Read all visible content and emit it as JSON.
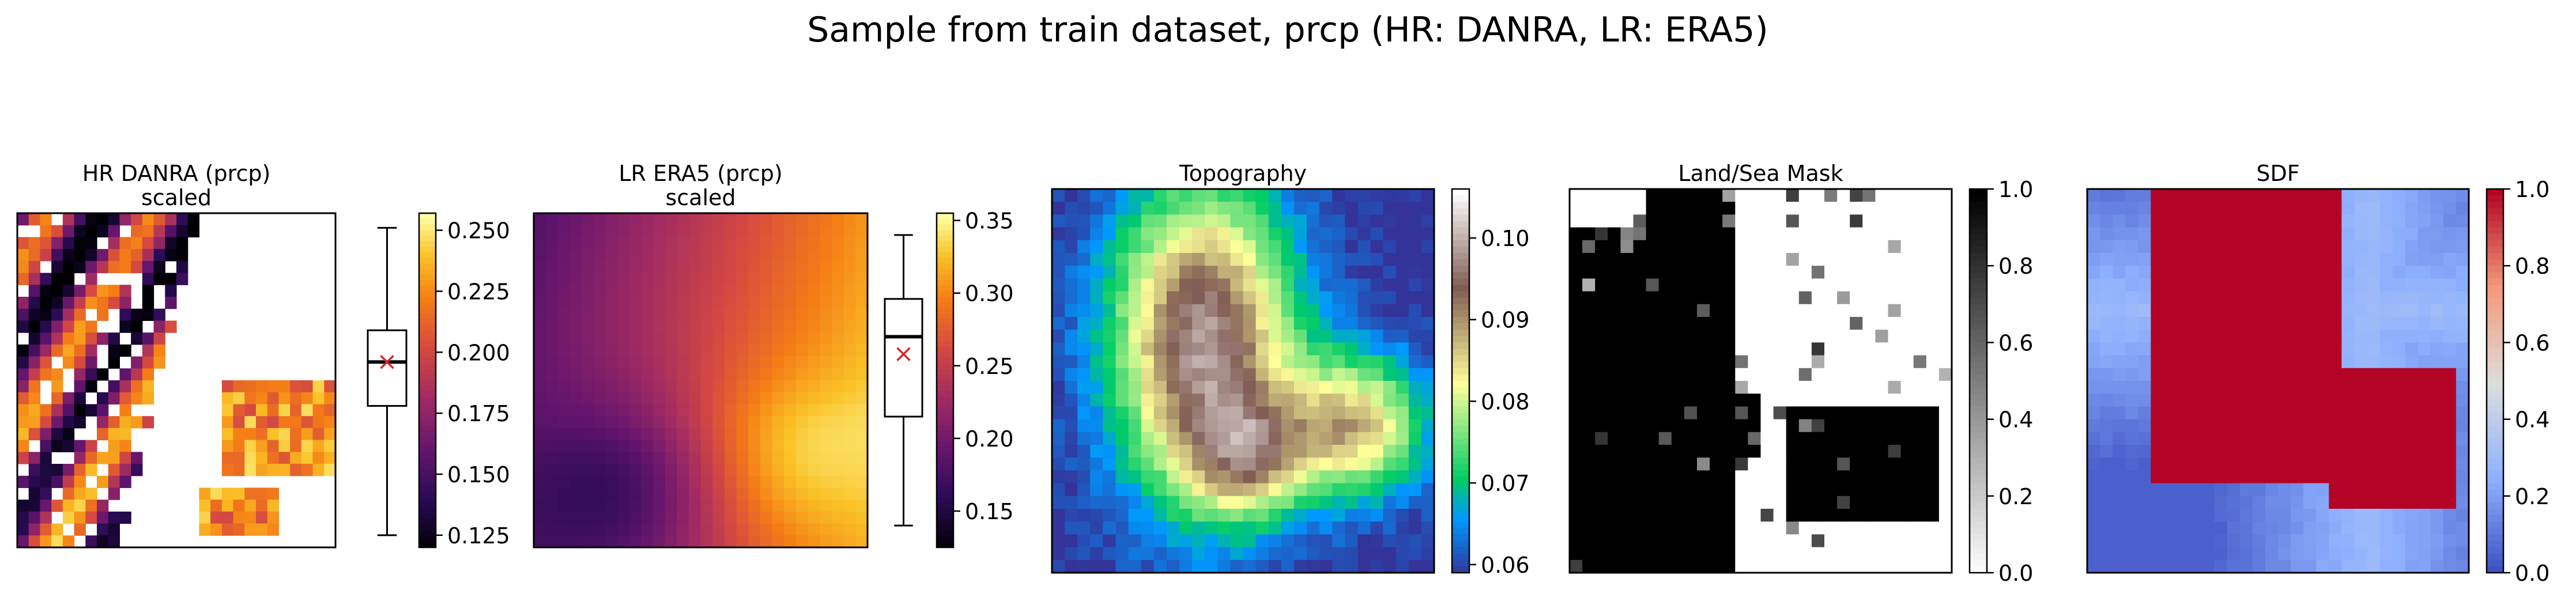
{
  "figure": {
    "suptitle": "Sample from train dataset, prcp (HR: DANRA, LR: ERA5)"
  },
  "chart_data": [
    {
      "type": "heatmap",
      "title": "HR DANRA (prcp)\nscaled",
      "colormap": "inferno",
      "masked": true,
      "colorbar": {
        "range": [
          0.12,
          0.257
        ],
        "ticks": [
          0.125,
          0.15,
          0.175,
          0.2,
          0.225,
          0.25
        ],
        "tick_labels": [
          "0.125",
          "0.150",
          "0.175",
          "0.200",
          "0.225",
          "0.250"
        ]
      },
      "boxplot": {
        "whisker_low": 0.125,
        "q1": 0.178,
        "median": 0.196,
        "mean": 0.196,
        "q3": 0.209,
        "whisker_high": 0.251
      }
    },
    {
      "type": "heatmap",
      "title": "LR ERA5 (prcp)\nscaled",
      "colormap": "inferno",
      "colorbar": {
        "range": [
          0.125,
          0.355
        ],
        "ticks": [
          0.15,
          0.2,
          0.25,
          0.3,
          0.35
        ],
        "tick_labels": [
          "0.15",
          "0.20",
          "0.25",
          "0.30",
          "0.35"
        ]
      },
      "boxplot": {
        "whisker_low": 0.14,
        "q1": 0.215,
        "median": 0.27,
        "mean": 0.258,
        "q3": 0.296,
        "whisker_high": 0.34
      }
    },
    {
      "type": "heatmap",
      "title": "Topography",
      "colormap": "terrain",
      "colorbar": {
        "range": [
          0.059,
          0.106
        ],
        "ticks": [
          0.06,
          0.07,
          0.08,
          0.09,
          0.1
        ],
        "tick_labels": [
          "0.06",
          "0.07",
          "0.08",
          "0.09",
          "0.10"
        ]
      }
    },
    {
      "type": "heatmap",
      "title": "Land/Sea Mask",
      "colormap": "binary",
      "colorbar": {
        "range": [
          0.0,
          1.0
        ],
        "ticks": [
          0.0,
          0.2,
          0.4,
          0.6,
          0.8,
          1.0
        ],
        "tick_labels": [
          "0.0",
          "0.2",
          "0.4",
          "0.6",
          "0.8",
          "1.0"
        ]
      }
    },
    {
      "type": "heatmap",
      "title": "SDF",
      "colormap": "coolwarm",
      "colorbar": {
        "range": [
          0.0,
          1.0
        ],
        "ticks": [
          0.0,
          0.2,
          0.4,
          0.6,
          0.8,
          1.0
        ],
        "tick_labels": [
          "0.0",
          "0.2",
          "0.4",
          "0.6",
          "0.8",
          "1.0"
        ]
      }
    }
  ]
}
